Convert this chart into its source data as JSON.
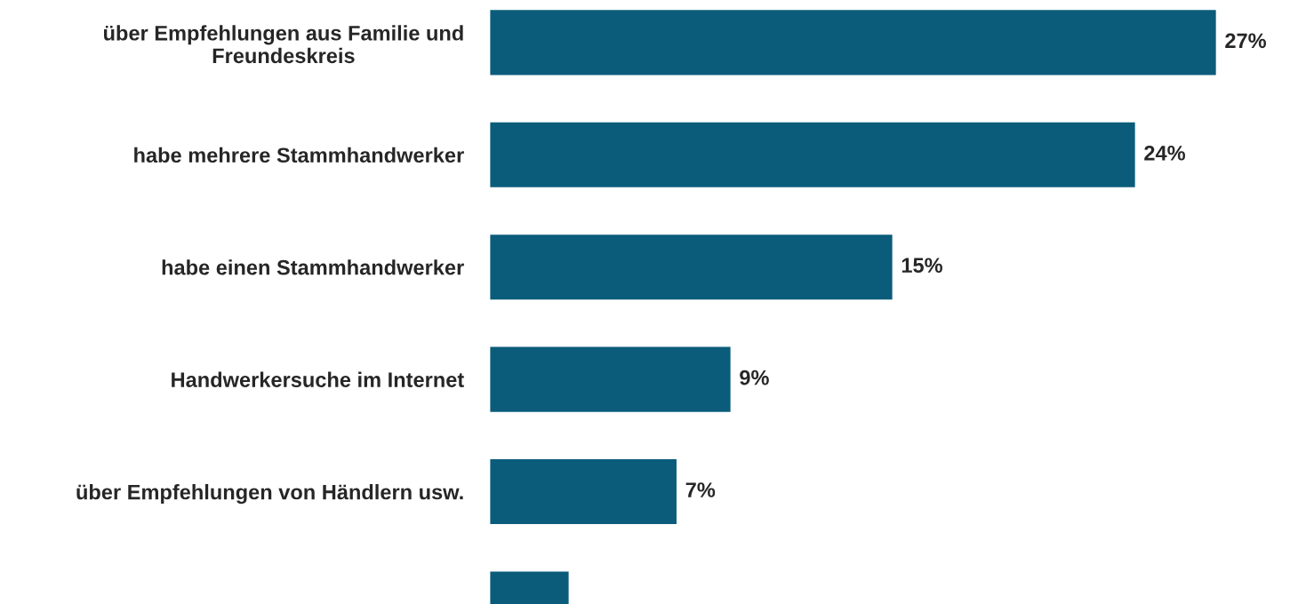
{
  "chart_data": {
    "type": "bar",
    "orientation": "horizontal",
    "categories": [
      "über Empfehlungen aus Familie und\nFreundeskreis",
      "habe mehrere Stammhandwerker",
      "habe einen Stammhandwerker",
      "Handwerkersuche im Internet",
      "über Empfehlungen von Händlern usw.",
      null
    ],
    "values": [
      27,
      24,
      15,
      9,
      7,
      3
    ],
    "value_labels": [
      "27%",
      "24%",
      "15%",
      "9%",
      "7%",
      null
    ],
    "color": "#0b5c7a",
    "tick_labels": "y",
    "grid": false,
    "legend": false
  }
}
